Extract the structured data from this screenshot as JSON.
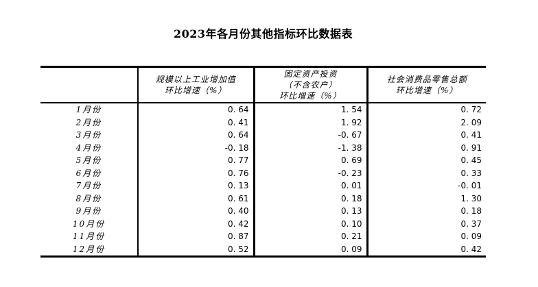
{
  "title": "2023年各月份其他指标环比数据表",
  "colors": {
    "background": "#ffffff",
    "border": "#000000",
    "text": "#000000"
  },
  "table": {
    "headers": {
      "month_col": "",
      "industrial_lines": [
        "规模以上工业增加值",
        "环比增速（%）"
      ],
      "investment_lines": [
        "固定资产投资",
        "（不含农户）",
        "环比增速（%）"
      ],
      "retail_lines": [
        "社会消费品零售总额",
        "环比增速（%）"
      ]
    },
    "rows": [
      [
        "1月份",
        "0. 64",
        "1. 54",
        "0. 72"
      ],
      [
        "2月份",
        "0. 41",
        "1. 92",
        "2. 09"
      ],
      [
        "3月份",
        "0. 64",
        "-0. 67",
        "0. 41"
      ],
      [
        "4月份",
        "-0. 18",
        "-1. 38",
        "0. 91"
      ],
      [
        "5月份",
        "0. 77",
        "0. 69",
        "0. 45"
      ],
      [
        "6月份",
        "0. 76",
        "-0. 23",
        "0. 33"
      ],
      [
        "7月份",
        "0. 13",
        "0. 01",
        "-0. 01"
      ],
      [
        "8月份",
        "0. 61",
        "0. 18",
        "1. 30"
      ],
      [
        "9月份",
        "0. 40",
        "0. 13",
        "0. 18"
      ],
      [
        "10月份",
        "0. 42",
        "0. 10",
        "0. 37"
      ],
      [
        "11月份",
        "0. 87",
        "0. 21",
        "0. 09"
      ],
      [
        "12月份",
        "0. 52",
        "0. 09",
        "0. 42"
      ]
    ]
  },
  "chart_data": {
    "type": "table",
    "title": "2023年各月份其他指标环比数据表",
    "categories": [
      "1月份",
      "2月份",
      "3月份",
      "4月份",
      "5月份",
      "6月份",
      "7月份",
      "8月份",
      "9月份",
      "10月份",
      "11月份",
      "12月份"
    ],
    "series": [
      {
        "name": "规模以上工业增加值环比增速（%）",
        "values": [
          0.64,
          0.41,
          0.64,
          -0.18,
          0.77,
          0.76,
          0.13,
          0.61,
          0.4,
          0.42,
          0.87,
          0.52
        ]
      },
      {
        "name": "固定资产投资（不含农户）环比增速（%）",
        "values": [
          1.54,
          1.92,
          -0.67,
          -1.38,
          0.69,
          -0.23,
          0.01,
          0.18,
          0.13,
          0.1,
          0.21,
          0.09
        ]
      },
      {
        "name": "社会消费品零售总额环比增速（%）",
        "values": [
          0.72,
          2.09,
          0.41,
          0.91,
          0.45,
          0.33,
          -0.01,
          1.3,
          0.18,
          0.37,
          0.09,
          0.42
        ]
      }
    ]
  }
}
